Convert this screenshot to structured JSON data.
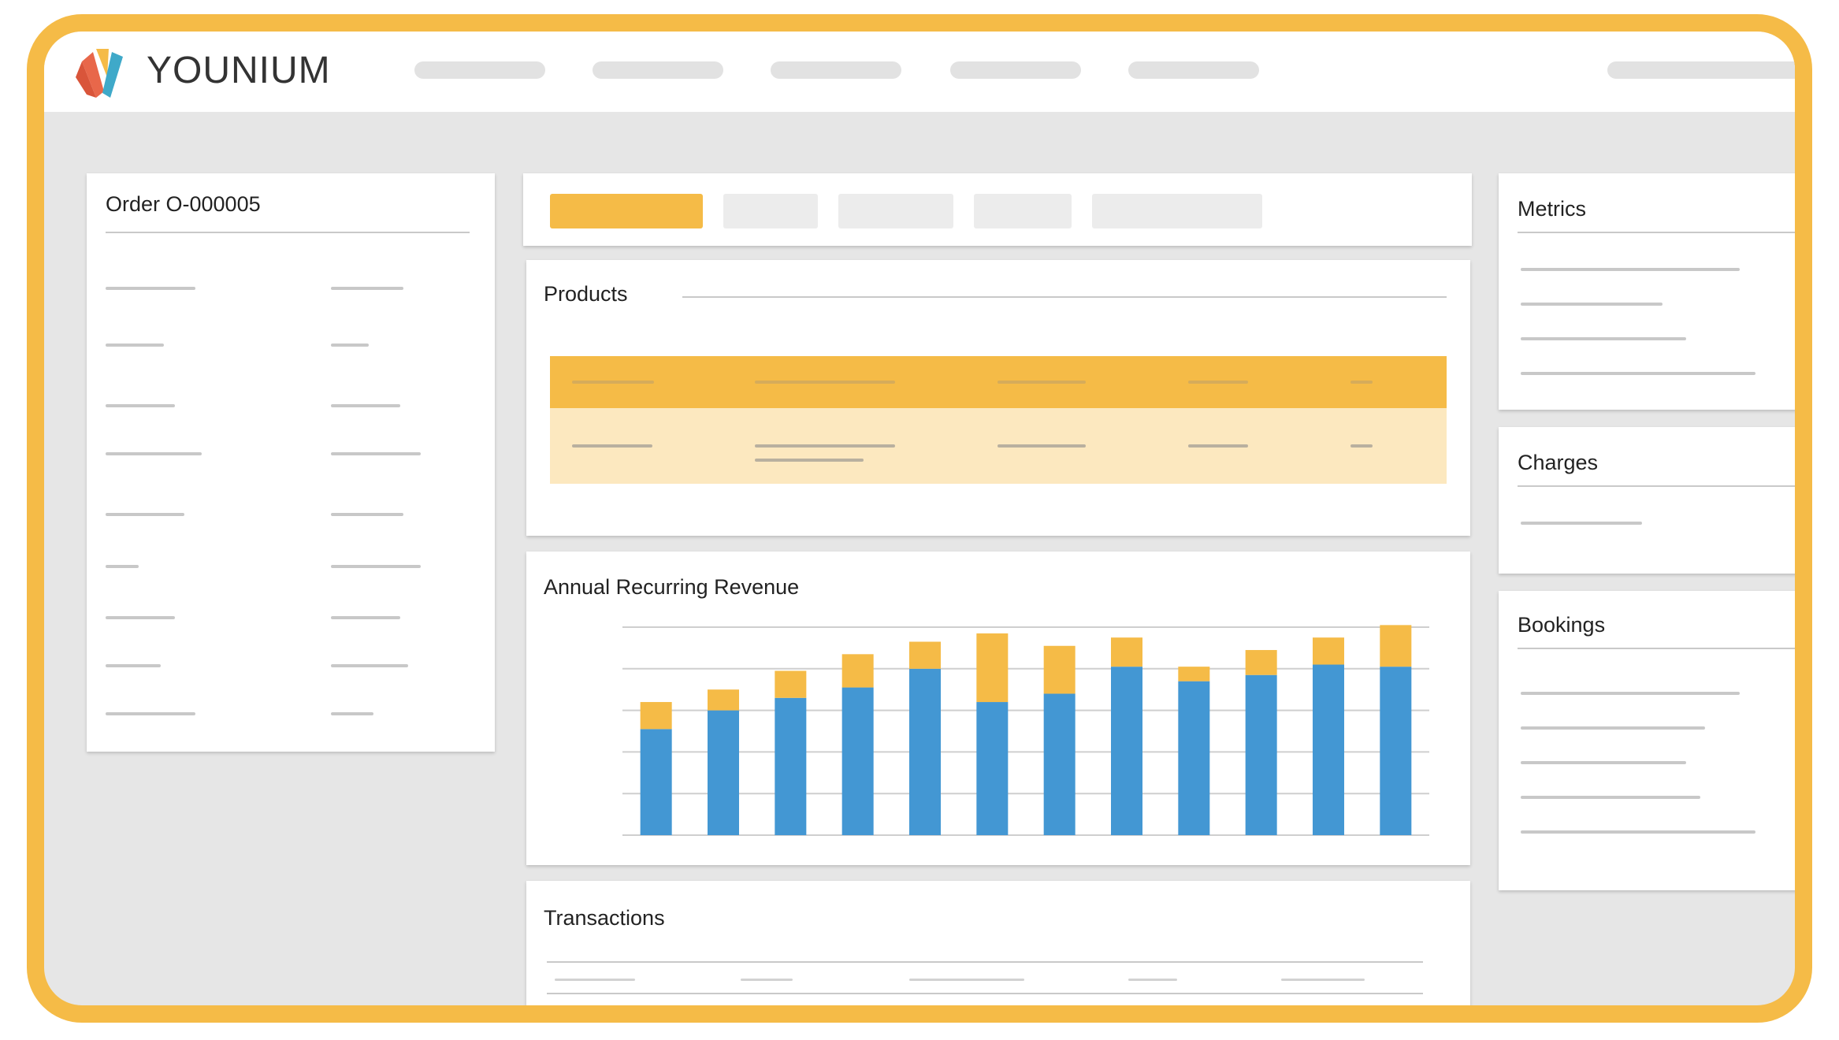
{
  "app": {
    "brand": "YOUNIUM"
  },
  "order_card": {
    "title": "Order O-000005"
  },
  "products_card": {
    "title": "Products"
  },
  "arr_card": {
    "title": "Annual Recurring Revenue"
  },
  "transactions_card": {
    "title": "Transactions"
  },
  "metrics_card": {
    "title": "Metrics"
  },
  "charges_card": {
    "title": "Charges"
  },
  "bookings_card": {
    "title": "Bookings"
  },
  "colors": {
    "accent": "#f5bb47",
    "bar_blue": "#4397d3",
    "bar_yellow": "#f5bb47",
    "background": "#e6e6e6"
  },
  "chart_data": {
    "type": "bar",
    "stacked": true,
    "title": "Annual Recurring Revenue",
    "categories": [
      "",
      "",
      "",
      "",
      "",
      "",
      "",
      "",
      "",
      "",
      "",
      ""
    ],
    "series": [
      {
        "color": "#4397d3",
        "values": [
          2.55,
          3.0,
          3.3,
          3.55,
          4.0,
          3.2,
          3.4,
          4.05,
          3.7,
          3.85,
          4.1,
          4.05
        ]
      },
      {
        "color": "#f5bb47",
        "values": [
          0.65,
          0.5,
          0.65,
          0.8,
          0.65,
          1.65,
          1.15,
          0.7,
          0.35,
          0.6,
          0.65,
          1.0
        ]
      }
    ],
    "ylim": [
      0,
      5
    ],
    "grid": true
  }
}
